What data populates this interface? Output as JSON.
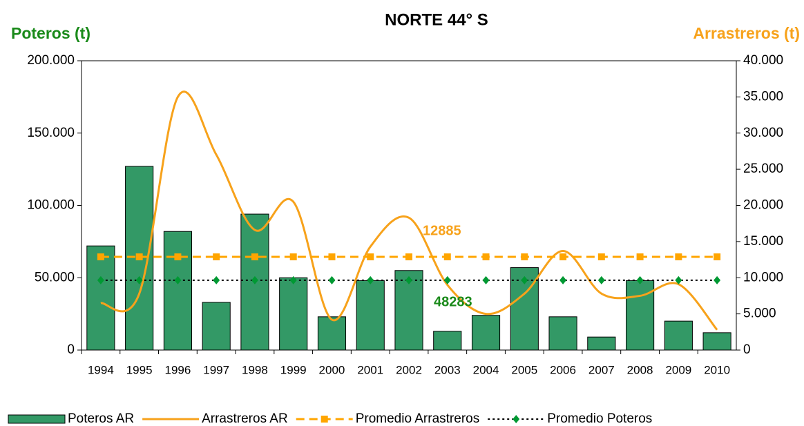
{
  "chart_data": {
    "type": "combo",
    "title": "NORTE 44° S",
    "y_label": "Poteros (t)",
    "y2_label": "Arrastreros (t)",
    "categories": [
      "1994",
      "1995",
      "1996",
      "1997",
      "1998",
      "1999",
      "2000",
      "2001",
      "2002",
      "2003",
      "2004",
      "2005",
      "2006",
      "2007",
      "2008",
      "2009",
      "2010"
    ],
    "ylim": [
      0,
      200000
    ],
    "yticks": [
      {
        "value": 0,
        "label": "0"
      },
      {
        "value": 50000,
        "label": "50.000"
      },
      {
        "value": 100000,
        "label": "100.000"
      },
      {
        "value": 150000,
        "label": "150.000"
      },
      {
        "value": 200000,
        "label": "200.000"
      }
    ],
    "y2lim": [
      0,
      40000
    ],
    "y2ticks": [
      {
        "value": 0,
        "label": "0"
      },
      {
        "value": 5000,
        "label": "5.000"
      },
      {
        "value": 10000,
        "label": "10.000"
      },
      {
        "value": 15000,
        "label": "15.000"
      },
      {
        "value": 20000,
        "label": "20.000"
      },
      {
        "value": 25000,
        "label": "25.000"
      },
      {
        "value": 30000,
        "label": "30.000"
      },
      {
        "value": 35000,
        "label": "35.000"
      },
      {
        "value": 40000,
        "label": "40.000"
      }
    ],
    "y_label_color": "#1a8a1a",
    "y2_label_color": "#f7a21b",
    "series": [
      {
        "name": "Poteros AR",
        "type": "bar",
        "color": "#339966",
        "axis": "y",
        "values": [
          72000,
          127000,
          82000,
          33000,
          94000,
          50000,
          23000,
          48000,
          55000,
          13000,
          24000,
          57000,
          23000,
          9000,
          48000,
          20000,
          12000
        ]
      },
      {
        "name": "Arrastreros AR",
        "type": "line",
        "color": "#f7a21b",
        "axis": "y2",
        "smooth": true,
        "values": [
          6500,
          7800,
          35000,
          27000,
          16600,
          20500,
          4200,
          14300,
          18300,
          9000,
          5000,
          7800,
          13700,
          7800,
          7500,
          9100,
          2800
        ]
      },
      {
        "name": "Promedio Arrastreros",
        "type": "line",
        "color": "#ffa500",
        "axis": "y2",
        "dash": "dashed",
        "marker": "square",
        "marker_color": "#ffa500",
        "values": [
          12885,
          12885,
          12885,
          12885,
          12885,
          12885,
          12885,
          12885,
          12885,
          12885,
          12885,
          12885,
          12885,
          12885,
          12885,
          12885,
          12885
        ]
      },
      {
        "name": "Promedio Poteros",
        "type": "line",
        "color": "#000000",
        "axis": "y",
        "dash": "dotted",
        "marker": "diamond",
        "marker_color": "#009933",
        "values": [
          48283,
          48283,
          48283,
          48283,
          48283,
          48283,
          48283,
          48283,
          48283,
          48283,
          48283,
          48283,
          48283,
          48283,
          48283,
          48283,
          48283
        ]
      }
    ],
    "annotations": [
      {
        "text": "12885",
        "color": "#f7a21b"
      },
      {
        "text": "48283",
        "color": "#1a8a1a"
      }
    ]
  }
}
